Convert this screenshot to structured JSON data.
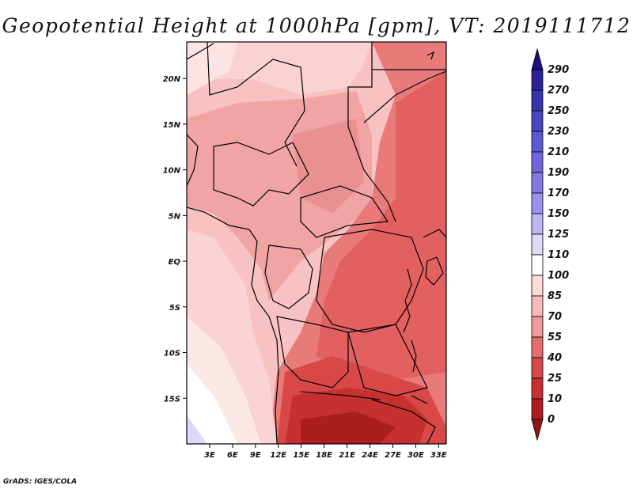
{
  "title": "Geopotential Height at 1000hPa [gpm], VT: 2019111712",
  "credit": "GrADS: IGES/COLA",
  "map": {
    "lon_range": [
      0,
      34
    ],
    "lat_range": [
      -20,
      24
    ],
    "x_ticks": [
      "3E",
      "6E",
      "9E",
      "12E",
      "15E",
      "18E",
      "21E",
      "24E",
      "27E",
      "30E",
      "33E"
    ],
    "y_ticks": [
      "20N",
      "15N",
      "10N",
      "5N",
      "EQ",
      "5S",
      "10S",
      "15S"
    ]
  },
  "colorbar": {
    "levels": [
      "290",
      "270",
      "250",
      "230",
      "210",
      "190",
      "170",
      "150",
      "125",
      "110",
      "100",
      "85",
      "70",
      "55",
      "40",
      "25",
      "10",
      "0"
    ],
    "colors": [
      "#1a1080",
      "#2a2296",
      "#3a34ac",
      "#4c46c0",
      "#5e58d0",
      "#7066dc",
      "#8478e4",
      "#9c92ec",
      "#bcb6f2",
      "#dcdaf8",
      "#ffffff",
      "#fcdada",
      "#f8baba",
      "#f09a9a",
      "#e46e6e",
      "#d84848",
      "#c63030",
      "#ac1e1e",
      "#8e1616"
    ]
  }
}
